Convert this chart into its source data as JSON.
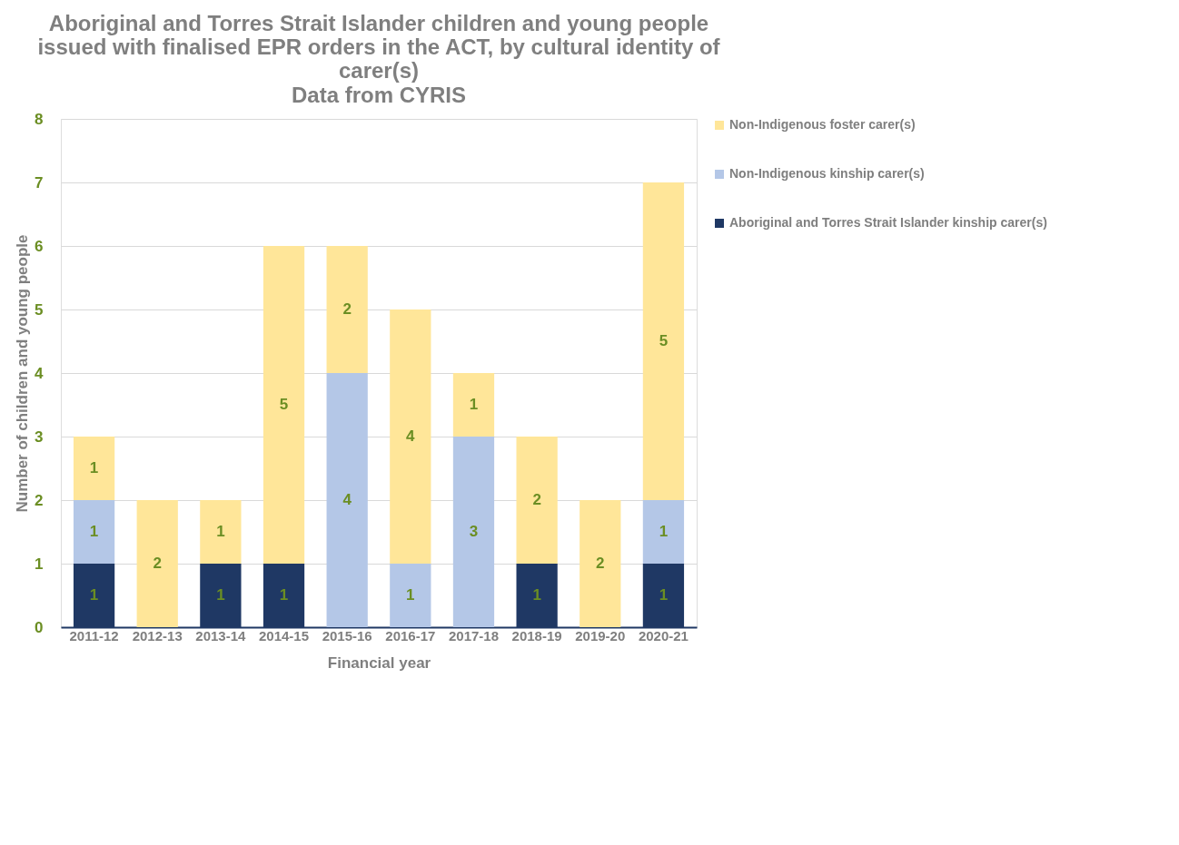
{
  "chart_data": {
    "type": "bar",
    "title": "Aboriginal and Torres Strait Islander children and young people issued with finalised EPR orders in the ACT, by cultural identity of carer(s)",
    "subtitle": "Data from CYRIS",
    "xlabel": "Financial year",
    "ylabel": "Number of children and young people",
    "categories": [
      "2011-12",
      "2012-13",
      "2013-14",
      "2014-15",
      "2015-16",
      "2016-17",
      "2017-18",
      "2018-19",
      "2019-20",
      "2020-21"
    ],
    "series": [
      {
        "name": "Aboriginal and Torres Strait Islander kinship carer(s)",
        "color": "#1f3864",
        "values": [
          1,
          0,
          1,
          1,
          0,
          0,
          0,
          1,
          0,
          1
        ],
        "value_labels": [
          "1",
          null,
          "1",
          "1",
          null,
          null,
          null,
          "1",
          null,
          "1"
        ]
      },
      {
        "name": "Non-Indigenous kinship carer(s)",
        "color": "#b4c7e7",
        "values": [
          1,
          0,
          0,
          0,
          4,
          1,
          3,
          0,
          0,
          1
        ],
        "value_labels": [
          "1",
          null,
          null,
          null,
          "4",
          "1",
          "3",
          null,
          null,
          "1"
        ]
      },
      {
        "name": "Non-Indigenous foster carer(s)",
        "color": "#ffe699",
        "values": [
          1,
          2,
          1,
          5,
          2,
          4,
          1,
          2,
          2,
          5
        ],
        "value_labels": [
          "1",
          "2",
          "1",
          "5",
          "2",
          "4",
          "1",
          "2",
          "2",
          "5"
        ]
      }
    ],
    "stacked": true,
    "ylim": [
      0,
      8
    ],
    "yticks": [
      0,
      1,
      2,
      3,
      4,
      5,
      6,
      7,
      8
    ],
    "grid": "y",
    "legend": "right"
  }
}
